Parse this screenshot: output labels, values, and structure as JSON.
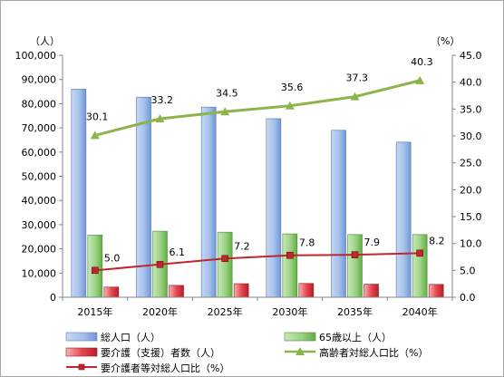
{
  "chart_data": {
    "type": "bar",
    "categories": [
      "2015年",
      "2020年",
      "2025年",
      "2030年",
      "2035年",
      "2040年"
    ],
    "left_axis": {
      "unit": "（人）",
      "ylim": [
        0,
        100000
      ],
      "ticks": [
        "0",
        "10,000",
        "20,000",
        "30,000",
        "40,000",
        "50,000",
        "60,000",
        "70,000",
        "80,000",
        "90,000",
        "100,000"
      ]
    },
    "right_axis": {
      "unit": "（%）",
      "ylim": [
        0,
        45
      ],
      "ticks": [
        "0.0",
        "5.0",
        "10.0",
        "15.0",
        "20.0",
        "25.0",
        "30.0",
        "35.0",
        "40.0",
        "45.0"
      ]
    },
    "bar_series": [
      {
        "name": "総人口（人）",
        "values": [
          86000,
          82700,
          78600,
          73800,
          69000,
          64100
        ],
        "color": "#7fa7e0"
      },
      {
        "name": "65歳以上（人）",
        "values": [
          25700,
          27300,
          26900,
          26200,
          25900,
          25900
        ],
        "color": "#82c368"
      },
      {
        "name": "要介護（支援）者数（人）",
        "values": [
          4200,
          4900,
          5600,
          5700,
          5400,
          5300
        ],
        "color": "#e0303a"
      }
    ],
    "line_series": [
      {
        "name": "高齢者対総人口比（%）",
        "values": [
          30.1,
          33.2,
          34.5,
          35.6,
          37.3,
          40.3
        ],
        "labels": [
          "30.1",
          "33.2",
          "34.5",
          "35.6",
          "37.3",
          "40.3"
        ],
        "color": "#8db44a"
      },
      {
        "name": "要介護者等対総人口比（%）",
        "values": [
          5.0,
          6.1,
          7.2,
          7.8,
          7.9,
          8.2
        ],
        "labels": [
          "5.0",
          "6.1",
          "7.2",
          "7.8",
          "7.9",
          "8.2"
        ],
        "color": "#c0262d"
      }
    ],
    "grid": false,
    "legend_position": "bottom"
  }
}
